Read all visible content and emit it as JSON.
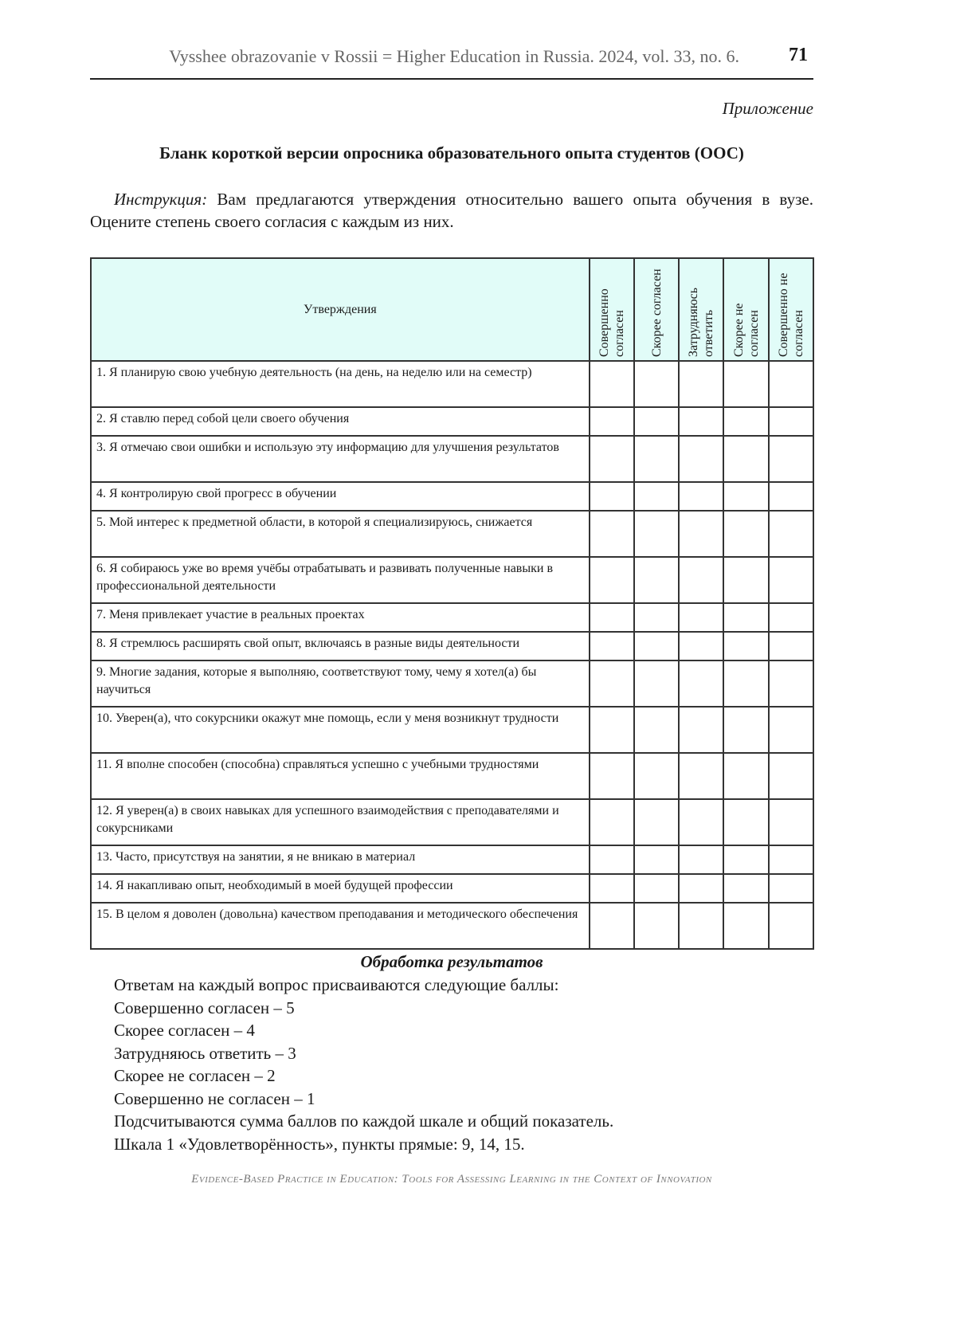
{
  "header": {
    "running_title": "Vysshee obrazovanie v Rossii = Higher Education in Russia. 2024, vol. 33, no. 6.",
    "page_number": "71"
  },
  "appendix_label": "Приложение",
  "title": "Бланк короткой версии опросника образовательного опыта студентов (ООС)",
  "instruction": {
    "label": "Инструкция:",
    "text": " Вам предлагаются утверждения относительно вашего опыта обучения в вузе. Оцените степень своего согласия с каждым из них."
  },
  "table": {
    "colors": {
      "header_bg": "#e1fcf8"
    },
    "statement_header": "Утверждения",
    "options": [
      "Совершенно согласен",
      "Скорее согласен",
      "Затрудняюсь ответить",
      "Скорее не согласен",
      "Совершенно не согласен"
    ],
    "rows": [
      "1. Я планирую свою учебную деятельность (на день, на неделю или на семестр)",
      "2. Я ставлю перед собой цели своего обучения",
      "3. Я отмечаю свои ошибки и использую эту информацию для улучшения результатов",
      "4. Я контролирую свой прогресс в обучении",
      "5. Мой интерес к предметной области, в которой я специализируюсь, снижается",
      "6. Я собираюсь уже во время учёбы отрабатывать и развивать полученные навыки в профессиональной деятельности",
      "7. Меня привлекает участие в реальных проектах",
      "8. Я стремлюсь расширять свой опыт, включаясь в разные виды деятельности",
      "9. Многие задания, которые я выполняю, соответствуют тому, чему я хотел(а) бы научиться",
      "10. Уверен(а), что сокурсники окажут мне помощь, если у меня возникнут трудности",
      "11. Я вполне способен (способна) справляться успешно с учебными трудностями",
      "12. Я уверен(а) в своих навыках для успешного взаимодействия с преподавателями и сокурсниками",
      "13. Часто, присутствуя на занятии, я не вникаю в материал",
      "14. Я накапливаю опыт, необходимый в моей будущей профессии",
      "15. В целом я доволен (довольна) качеством преподавания и методического обеспечения"
    ]
  },
  "processing": {
    "title": "Обработка результатов",
    "lines": [
      "Ответам на каждый вопрос присваиваются следующие баллы:",
      "Совершенно согласен – 5",
      "Скорее согласен – 4",
      "Затрудняюсь ответить – 3",
      "Скорее не согласен – 2",
      "Совершенно не согласен – 1",
      "Подсчитываются сумма баллов по каждой шкале и общий показатель.",
      "Шкала 1 «Удовлетворённость», пункты прямые: 9, 14, 15."
    ]
  },
  "footer": "Evidence-Based Practice in Education: Tools for Assessing Learning in the Context of Innovation"
}
